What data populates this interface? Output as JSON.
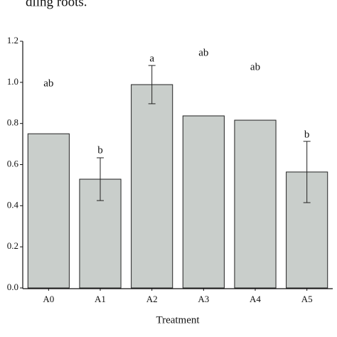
{
  "chart_data": {
    "type": "bar",
    "caption": "dling roots.",
    "xlabel": "Treatment",
    "categories": [
      "A0",
      "A1",
      "A2",
      "A3",
      "A4",
      "A5"
    ],
    "values": [
      0.75,
      0.529,
      0.989,
      0.837,
      0.816,
      0.564
    ],
    "errors": [
      null,
      0.104,
      0.093,
      null,
      null,
      0.149
    ],
    "annotations": [
      "ab",
      "b",
      "a",
      "ab",
      "ab",
      "b"
    ],
    "color": "#c9cecb",
    "ylim": [
      0,
      1.2
    ],
    "yticks": [
      {
        "value": 0,
        "label": "0.0"
      },
      0.2,
      0.4,
      0.6,
      0.8,
      {
        "value": 1,
        "label": "1.0"
      },
      1.2
    ]
  }
}
